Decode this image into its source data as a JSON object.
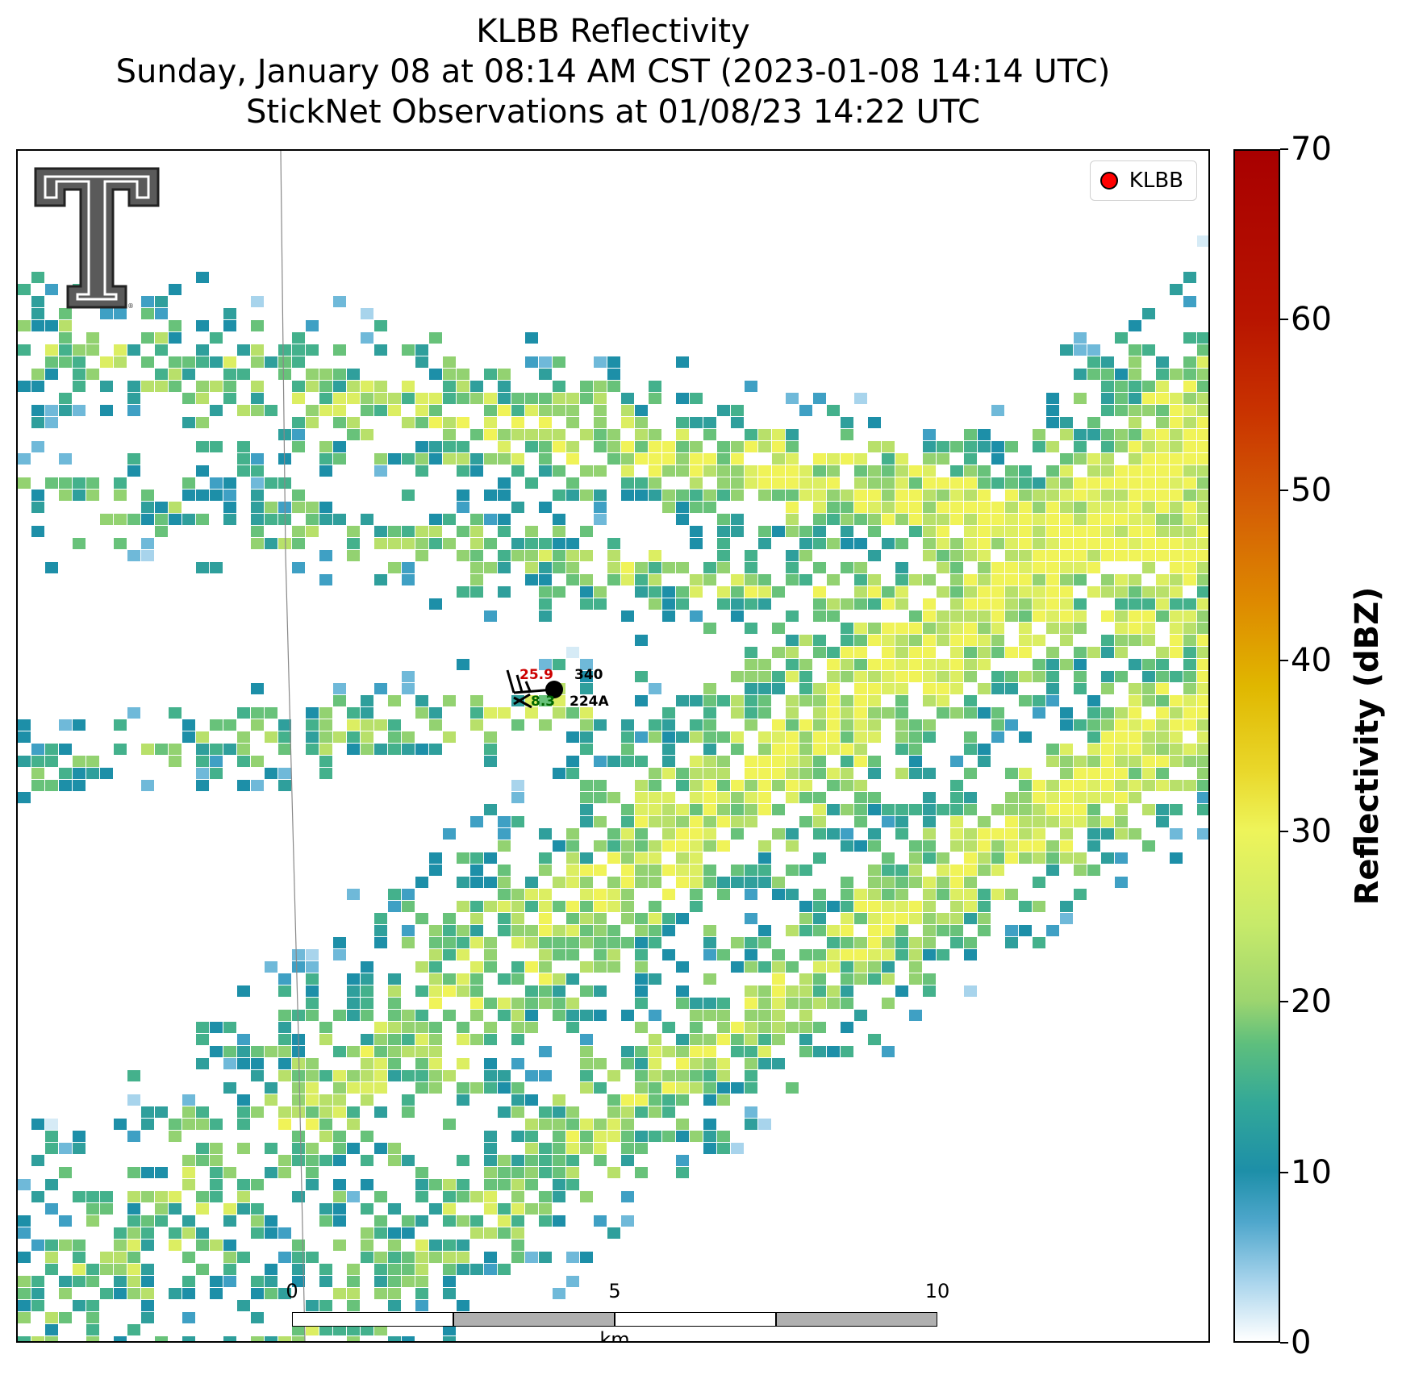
{
  "title": {
    "line1": "KLBB Reflectivity",
    "line2": "Sunday, January 08 at 08:14 AM CST (2023-01-08 14:14 UTC)",
    "line3": "StickNet Observations at 01/08/23 14:22 UTC"
  },
  "legend": {
    "label": "KLBB",
    "marker_color": "#ff0000"
  },
  "station": {
    "temperature": "25.9",
    "station_id": "340",
    "dewpoint": "8.3",
    "station_name": "224A",
    "temperature_color": "#cc0000",
    "dewpoint_color": "#006600"
  },
  "scalebar": {
    "ticks": [
      "0",
      "5",
      "10"
    ],
    "unit": "km"
  },
  "colorbar": {
    "label": "Reflectivity (dBZ)",
    "min": 0,
    "max": 70,
    "ticks": [
      "0",
      "10",
      "20",
      "30",
      "40",
      "50",
      "60",
      "70"
    ]
  },
  "logo": {
    "name": "Texas Tech Double T"
  }
}
